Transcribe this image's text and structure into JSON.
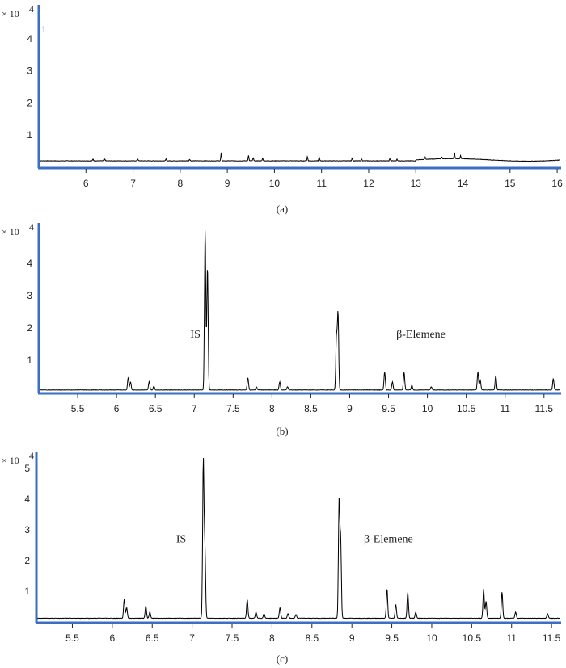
{
  "chart_data": [
    {
      "type": "line",
      "caption": "(a)",
      "y_multiplier": "× 10",
      "y_exponent": "4",
      "corner_label": "1",
      "xlim": [
        5.0,
        16.05
      ],
      "ylim": [
        0,
        4.9
      ],
      "x_ticks": [
        6,
        7,
        8,
        9,
        10,
        11,
        12,
        13,
        14,
        15,
        16
      ],
      "y_ticks": [
        1,
        2,
        3,
        4
      ],
      "grid": false,
      "baseline": 0.2,
      "peaks": [
        [
          6.15,
          0.06
        ],
        [
          6.4,
          0.05
        ],
        [
          7.1,
          0.05
        ],
        [
          7.7,
          0.06
        ],
        [
          8.2,
          0.05
        ],
        [
          8.87,
          0.23
        ],
        [
          9.45,
          0.17
        ],
        [
          9.55,
          0.1
        ],
        [
          9.75,
          0.08
        ],
        [
          10.7,
          0.13
        ],
        [
          10.95,
          0.12
        ],
        [
          11.65,
          0.1
        ],
        [
          11.85,
          0.06
        ],
        [
          12.45,
          0.07
        ],
        [
          12.6,
          0.05
        ],
        [
          13.2,
          0.07
        ],
        [
          13.55,
          0.06
        ],
        [
          13.82,
          0.2
        ],
        [
          13.95,
          0.1
        ]
      ],
      "annotations": []
    },
    {
      "type": "line",
      "caption": "(b)",
      "y_multiplier": "× 10",
      "y_exponent": "4",
      "xlim": [
        5.0,
        11.7
      ],
      "ylim": [
        0,
        5.1
      ],
      "x_ticks": [
        5.5,
        6,
        6.5,
        7,
        7.5,
        8,
        8.5,
        9,
        9.5,
        10,
        10.5,
        11,
        11.5
      ],
      "y_ticks": [
        1,
        2,
        3,
        4
      ],
      "grid": false,
      "baseline": 0.08,
      "peaks": [
        [
          6.15,
          0.38
        ],
        [
          6.18,
          0.25
        ],
        [
          6.42,
          0.26
        ],
        [
          6.48,
          0.12
        ],
        [
          7.14,
          4.95
        ],
        [
          7.17,
          3.8
        ],
        [
          7.69,
          0.38
        ],
        [
          7.8,
          0.1
        ],
        [
          8.1,
          0.25
        ],
        [
          8.2,
          0.1
        ],
        [
          8.85,
          2.35
        ],
        [
          8.83,
          1.6
        ],
        [
          9.45,
          0.55
        ],
        [
          9.55,
          0.25
        ],
        [
          9.7,
          0.55
        ],
        [
          9.8,
          0.15
        ],
        [
          10.05,
          0.1
        ],
        [
          10.65,
          0.55
        ],
        [
          10.68,
          0.3
        ],
        [
          10.88,
          0.45
        ],
        [
          11.62,
          0.35
        ]
      ],
      "annotations": [
        {
          "text": "IS",
          "x": 6.95,
          "y": 1.7
        },
        {
          "text": "β-Elemene",
          "x": 9.6,
          "y": 1.7
        }
      ]
    },
    {
      "type": "line",
      "caption": "(c)",
      "y_multiplier": "× 10",
      "y_exponent": "4",
      "xlim": [
        5.05,
        11.6
      ],
      "ylim": [
        0,
        5.4
      ],
      "x_ticks": [
        5.5,
        6,
        6.5,
        7,
        7.5,
        8,
        8.5,
        9,
        9.5,
        10,
        10.5,
        11,
        11.5
      ],
      "y_ticks": [
        1,
        2,
        3,
        4,
        5
      ],
      "grid": false,
      "baseline": 0.12,
      "peaks": [
        [
          6.15,
          0.62
        ],
        [
          6.18,
          0.35
        ],
        [
          6.42,
          0.4
        ],
        [
          6.47,
          0.2
        ],
        [
          7.14,
          5.1
        ],
        [
          7.16,
          2.2
        ],
        [
          7.69,
          0.62
        ],
        [
          7.8,
          0.2
        ],
        [
          7.9,
          0.15
        ],
        [
          8.1,
          0.35
        ],
        [
          8.2,
          0.15
        ],
        [
          8.3,
          0.12
        ],
        [
          8.84,
          3.8
        ],
        [
          8.86,
          2.5
        ],
        [
          9.44,
          0.95
        ],
        [
          9.55,
          0.45
        ],
        [
          9.7,
          0.85
        ],
        [
          9.8,
          0.2
        ],
        [
          10.65,
          0.95
        ],
        [
          10.68,
          0.55
        ],
        [
          10.88,
          0.85
        ],
        [
          11.05,
          0.2
        ],
        [
          11.45,
          0.15
        ]
      ],
      "annotations": [
        {
          "text": "IS",
          "x": 6.8,
          "y": 2.6
        },
        {
          "text": "β-Elemene",
          "x": 9.15,
          "y": 2.6
        }
      ]
    }
  ],
  "colors": {
    "axis": "#3a6fc4",
    "trace": "#000000",
    "text": "#222222"
  }
}
